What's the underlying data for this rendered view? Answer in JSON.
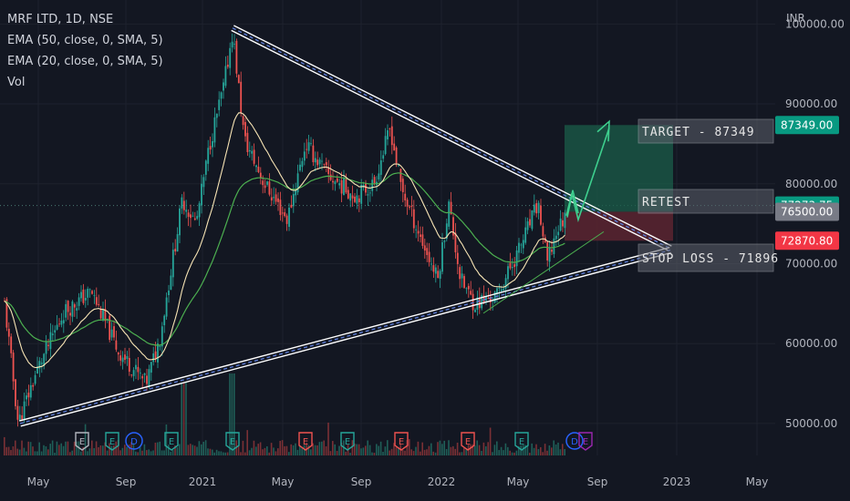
{
  "header": {
    "symbol": "MRF LTD, 1D, NSE",
    "indicators": [
      "EMA (50, close, 0, SMA, 5)",
      "EMA (20, close, 0, SMA, 5)",
      "Vol"
    ]
  },
  "currency": "INR",
  "colors": {
    "background": "#131722",
    "up": "#26a69a",
    "down": "#ef5350",
    "ema20": "#f6e3b4",
    "ema50": "#4caf50",
    "target_zone": "#1b5e4a",
    "stop_zone": "#5c2430",
    "target_badge": "#089981",
    "retest_badge": "#787b86",
    "stop_badge": "#f23645"
  },
  "chart_data": {
    "type": "candlestick",
    "x_axis_ticks": [
      "May",
      "Sep",
      "2021",
      "May",
      "Sep",
      "2022",
      "May",
      "Sep",
      "2023",
      "May"
    ],
    "y_axis_ticks": [
      "100000.00",
      "90000.00",
      "80000.00",
      "70000.00",
      "60000.00",
      "50000.00"
    ],
    "ylim": [
      46000,
      103000
    ],
    "x_index_range": [
      0,
      1200
    ],
    "approx_close_path": [
      [
        5,
        65000
      ],
      [
        20,
        50000
      ],
      [
        40,
        56500
      ],
      [
        70,
        64000
      ],
      [
        100,
        66500
      ],
      [
        130,
        59000
      ],
      [
        160,
        55000
      ],
      [
        175,
        60500
      ],
      [
        200,
        78000
      ],
      [
        215,
        75000
      ],
      [
        230,
        85000
      ],
      [
        245,
        92000
      ],
      [
        255,
        99000
      ],
      [
        268,
        85500
      ],
      [
        290,
        80000
      ],
      [
        315,
        75500
      ],
      [
        335,
        85000
      ],
      [
        360,
        81000
      ],
      [
        390,
        78500
      ],
      [
        410,
        80000
      ],
      [
        428,
        87000
      ],
      [
        440,
        79500
      ],
      [
        462,
        73000
      ],
      [
        480,
        68000
      ],
      [
        492,
        77500
      ],
      [
        505,
        68000
      ],
      [
        520,
        65000
      ],
      [
        545,
        66000
      ],
      [
        570,
        72000
      ],
      [
        590,
        77500
      ],
      [
        600,
        70000
      ],
      [
        610,
        74000
      ],
      [
        620,
        76000
      ]
    ],
    "annotations": {
      "target_label": "TARGET - 87349",
      "retest_label": "RETEST",
      "stop_label": "STOP LOSS - 71896",
      "price_labels": [
        "87349.00",
        "77273.75",
        "76500.00",
        "72870.80"
      ],
      "target_price": 87349,
      "retest_price": 77273.75,
      "entry_price": 76500,
      "stop_price": 72870.8,
      "stop_loss_price": 71896
    },
    "trendlines": {
      "upper": [
        [
          255,
          99500
        ],
        [
          735,
          71900
        ]
      ],
      "lower": [
        [
          22,
          50000
        ],
        [
          735,
          71700
        ]
      ]
    },
    "event_markers": [
      "E",
      "E",
      "D",
      "E",
      "E",
      "E",
      "E",
      "E",
      "E",
      "E",
      "D",
      "E"
    ]
  }
}
